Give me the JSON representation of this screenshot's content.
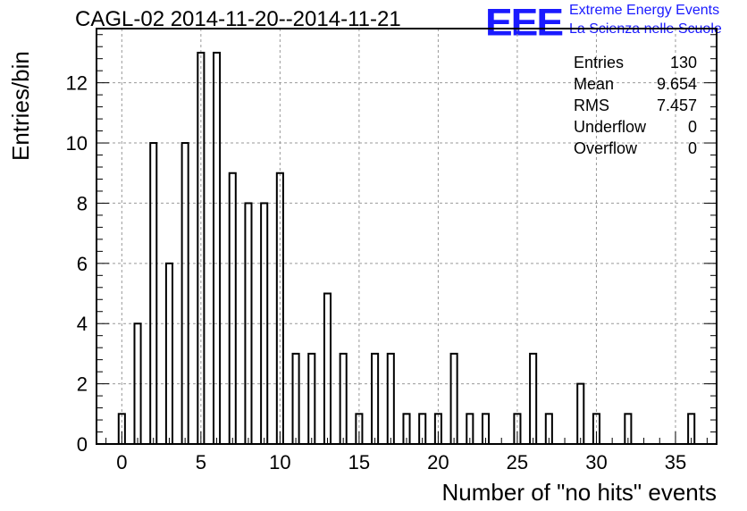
{
  "chart_data": {
    "type": "bar",
    "title": "CAGL-02 2014-11-20--2014-11-21",
    "xlabel": "Number of \"no hits\" events",
    "ylabel": "Entries/bin",
    "x": [
      0,
      1,
      2,
      3,
      4,
      5,
      6,
      7,
      8,
      9,
      10,
      11,
      12,
      13,
      14,
      15,
      16,
      17,
      18,
      19,
      20,
      21,
      22,
      23,
      24,
      25,
      26,
      27,
      28,
      29,
      30,
      31,
      32,
      33,
      34,
      35,
      36
    ],
    "values": [
      1,
      4,
      10,
      6,
      10,
      13,
      13,
      9,
      8,
      8,
      9,
      3,
      3,
      5,
      3,
      1,
      3,
      3,
      1,
      1,
      1,
      3,
      1,
      1,
      0,
      1,
      3,
      1,
      0,
      2,
      1,
      0,
      1,
      0,
      0,
      0,
      1
    ],
    "xlim": [
      -1.6,
      37.6
    ],
    "ylim": [
      0,
      13.8
    ],
    "xticks": [
      0,
      5,
      10,
      15,
      20,
      25,
      30,
      35
    ],
    "yticks": [
      0,
      2,
      4,
      6,
      8,
      10,
      12
    ],
    "grid": true,
    "bar_color": "#000000",
    "stats_box": {
      "position": "top-right",
      "rows": [
        {
          "label": "Entries",
          "value": "130"
        },
        {
          "label": "Mean",
          "value": "9.654"
        },
        {
          "label": "RMS",
          "value": "7.457"
        },
        {
          "label": "Underflow",
          "value": "0"
        },
        {
          "label": "Overflow",
          "value": "0"
        }
      ]
    }
  },
  "logo": {
    "mark": "EEE",
    "line1": "Extreme Energy Events",
    "line2": "La Scienza nelle Scuole",
    "color": "#1a1aff"
  }
}
